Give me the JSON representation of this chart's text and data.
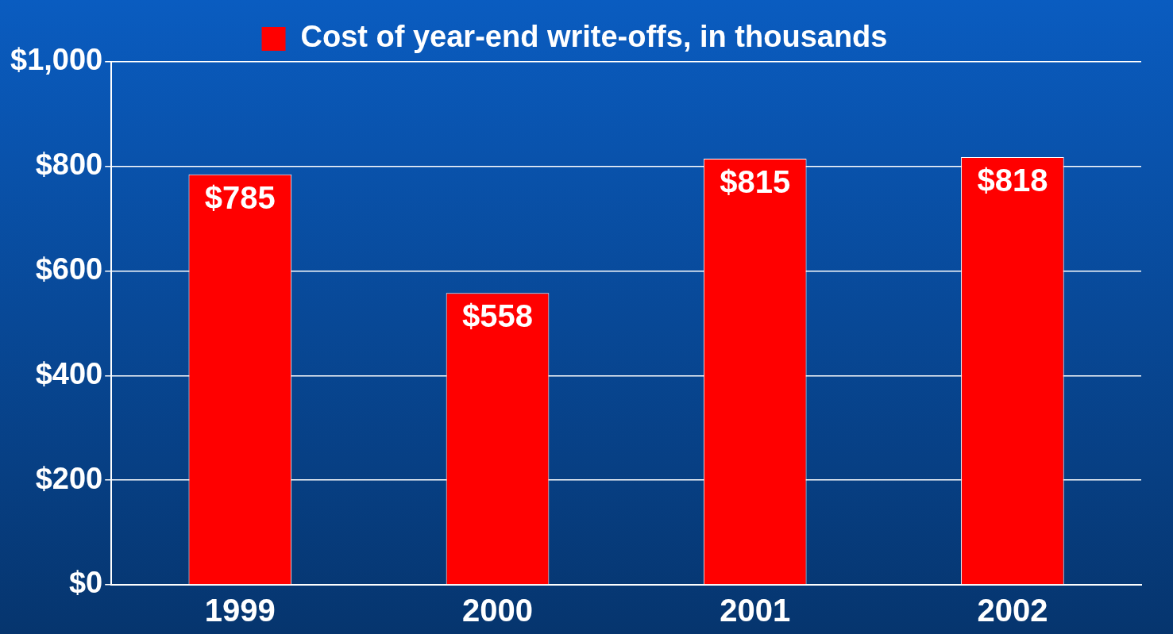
{
  "chart_data": {
    "type": "bar",
    "categories": [
      "1999",
      "2000",
      "2001",
      "2002"
    ],
    "series": [
      {
        "name": "Cost of year-end write-offs, in thousands",
        "color": "#ff0000",
        "values": [
          785,
          558,
          815,
          818
        ],
        "value_labels": [
          "$785",
          "$558",
          "$815",
          "$818"
        ]
      }
    ],
    "ylim": [
      0,
      1000
    ],
    "yticks": [
      {
        "value": 0,
        "label": "$0"
      },
      {
        "value": 200,
        "label": "$200"
      },
      {
        "value": 400,
        "label": "$400"
      },
      {
        "value": 600,
        "label": "$600"
      },
      {
        "value": 800,
        "label": "$800"
      },
      {
        "value": 1000,
        "label": "$1,000"
      }
    ],
    "grid": "y",
    "legend": "top"
  }
}
